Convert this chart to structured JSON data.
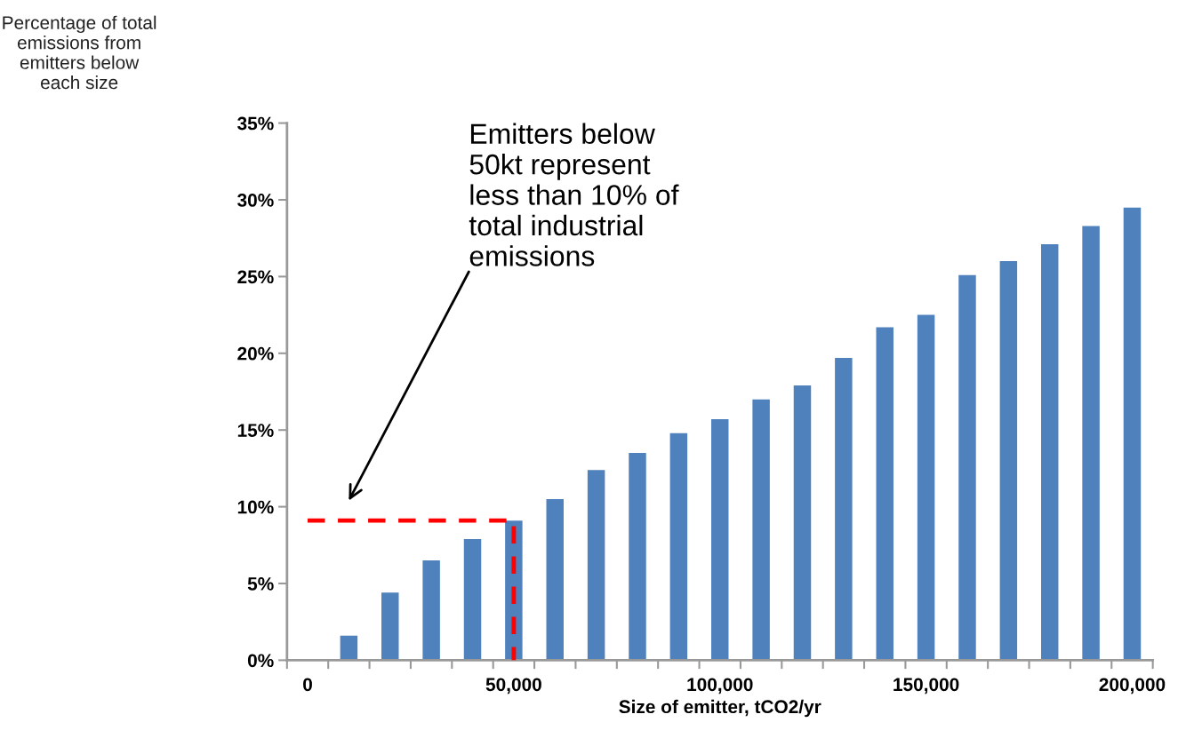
{
  "chart_data": {
    "type": "bar",
    "ylabel": "Percentage of total\nemissions from\nemitters below\neach size",
    "xlabel": "Size of emitter, tCO2/yr",
    "categories": [
      "0",
      null,
      null,
      null,
      null,
      "50,000",
      null,
      null,
      null,
      null,
      "100,000",
      null,
      null,
      null,
      null,
      "150,000",
      null,
      null,
      null,
      null,
      "200,000"
    ],
    "series": [
      {
        "color": "#4f81bd",
        "values": [
          null,
          1.6,
          4.4,
          6.5,
          7.9,
          9.1,
          10.5,
          12.4,
          13.5,
          14.8,
          15.7,
          17.0,
          17.9,
          19.7,
          21.7,
          22.5,
          25.1,
          26.0,
          27.1,
          28.3,
          29.5
        ]
      },
      {
        "type": "line",
        "color": "#ff0000",
        "line_style": "dashed",
        "marker": "none",
        "x": [
          "0",
          "50,000",
          "50,000"
        ],
        "values": [
          9.1,
          9.1,
          0
        ]
      }
    ],
    "ylim": [
      0,
      35
    ],
    "yticks": [
      {
        "value": 0,
        "label": "0%"
      },
      {
        "value": 5,
        "label": "5%"
      },
      {
        "value": 10,
        "label": "10%"
      },
      {
        "value": 15,
        "label": "15%"
      },
      {
        "value": 20,
        "label": "20%"
      },
      {
        "value": 25,
        "label": "25%"
      },
      {
        "value": 30,
        "label": "30%"
      },
      {
        "value": 35,
        "label": "35%"
      }
    ],
    "annotations": [
      "Emitters below\n50kt represent\nless than 10% of\ntotal industrial\nemissions"
    ]
  }
}
